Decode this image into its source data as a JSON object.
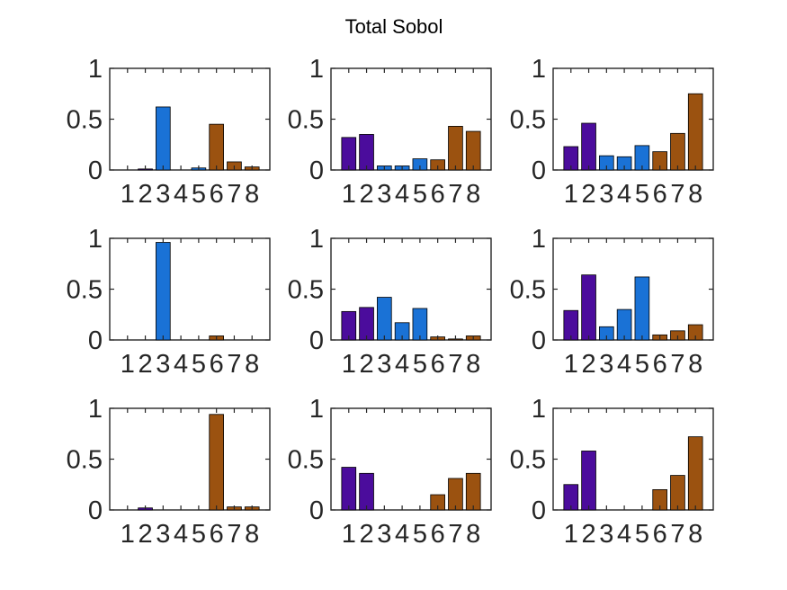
{
  "title": "Total Sobol",
  "colors": {
    "group_a": "#4B0C9C",
    "group_b": "#1A72D6",
    "group_c": "#9B5210",
    "axis": "#262626"
  },
  "chart_data": [
    {
      "type": "bar",
      "categories": [
        "1",
        "2",
        "3",
        "4",
        "5",
        "6",
        "7",
        "8"
      ],
      "values": [
        0.0,
        0.01,
        0.62,
        0.0,
        0.02,
        0.45,
        0.08,
        0.03
      ],
      "bar_colors": [
        "#4B0C9C",
        "#4B0C9C",
        "#1A72D6",
        "#1A72D6",
        "#1A72D6",
        "#9B5210",
        "#9B5210",
        "#9B5210"
      ],
      "ylim": [
        0,
        1
      ],
      "yticks": [
        0,
        0.5,
        1
      ],
      "ytick_labels": [
        "0",
        "0.5",
        "1"
      ]
    },
    {
      "type": "bar",
      "categories": [
        "1",
        "2",
        "3",
        "4",
        "5",
        "6",
        "7",
        "8"
      ],
      "values": [
        0.32,
        0.35,
        0.04,
        0.04,
        0.11,
        0.1,
        0.43,
        0.38
      ],
      "bar_colors": [
        "#4B0C9C",
        "#4B0C9C",
        "#1A72D6",
        "#1A72D6",
        "#1A72D6",
        "#9B5210",
        "#9B5210",
        "#9B5210"
      ],
      "ylim": [
        0,
        1
      ],
      "yticks": [
        0,
        0.5,
        1
      ],
      "ytick_labels": [
        "0",
        "0.5",
        "1"
      ]
    },
    {
      "type": "bar",
      "categories": [
        "1",
        "2",
        "3",
        "4",
        "5",
        "6",
        "7",
        "8"
      ],
      "values": [
        0.23,
        0.46,
        0.14,
        0.13,
        0.24,
        0.18,
        0.36,
        0.75
      ],
      "bar_colors": [
        "#4B0C9C",
        "#4B0C9C",
        "#1A72D6",
        "#1A72D6",
        "#1A72D6",
        "#9B5210",
        "#9B5210",
        "#9B5210"
      ],
      "ylim": [
        0,
        1
      ],
      "yticks": [
        0,
        0.5,
        1
      ],
      "ytick_labels": [
        "0",
        "0.5",
        "1"
      ]
    },
    {
      "type": "bar",
      "categories": [
        "1",
        "2",
        "3",
        "4",
        "5",
        "6",
        "7",
        "8"
      ],
      "values": [
        0.0,
        0.0,
        0.96,
        0.0,
        0.0,
        0.04,
        0.0,
        0.0
      ],
      "bar_colors": [
        "#4B0C9C",
        "#4B0C9C",
        "#1A72D6",
        "#1A72D6",
        "#1A72D6",
        "#9B5210",
        "#9B5210",
        "#9B5210"
      ],
      "ylim": [
        0,
        1
      ],
      "yticks": [
        0,
        0.5,
        1
      ],
      "ytick_labels": [
        "0",
        "0.5",
        "1"
      ]
    },
    {
      "type": "bar",
      "categories": [
        "1",
        "2",
        "3",
        "4",
        "5",
        "6",
        "7",
        "8"
      ],
      "values": [
        0.28,
        0.32,
        0.42,
        0.17,
        0.31,
        0.03,
        0.01,
        0.04
      ],
      "bar_colors": [
        "#4B0C9C",
        "#4B0C9C",
        "#1A72D6",
        "#1A72D6",
        "#1A72D6",
        "#9B5210",
        "#9B5210",
        "#9B5210"
      ],
      "ylim": [
        0,
        1
      ],
      "yticks": [
        0,
        0.5,
        1
      ],
      "ytick_labels": [
        "0",
        "0.5",
        "1"
      ]
    },
    {
      "type": "bar",
      "categories": [
        "1",
        "2",
        "3",
        "4",
        "5",
        "6",
        "7",
        "8"
      ],
      "values": [
        0.29,
        0.64,
        0.13,
        0.3,
        0.62,
        0.05,
        0.09,
        0.15
      ],
      "bar_colors": [
        "#4B0C9C",
        "#4B0C9C",
        "#1A72D6",
        "#1A72D6",
        "#1A72D6",
        "#9B5210",
        "#9B5210",
        "#9B5210"
      ],
      "ylim": [
        0,
        1
      ],
      "yticks": [
        0,
        0.5,
        1
      ],
      "ytick_labels": [
        "0",
        "0.5",
        "1"
      ]
    },
    {
      "type": "bar",
      "categories": [
        "1",
        "2",
        "3",
        "4",
        "5",
        "6",
        "7",
        "8"
      ],
      "values": [
        0.0,
        0.02,
        0.0,
        0.0,
        0.0,
        0.94,
        0.03,
        0.03
      ],
      "bar_colors": [
        "#4B0C9C",
        "#4B0C9C",
        "#1A72D6",
        "#1A72D6",
        "#1A72D6",
        "#9B5210",
        "#9B5210",
        "#9B5210"
      ],
      "ylim": [
        0,
        1
      ],
      "yticks": [
        0,
        0.5,
        1
      ],
      "ytick_labels": [
        "0",
        "0.5",
        "1"
      ]
    },
    {
      "type": "bar",
      "categories": [
        "1",
        "2",
        "3",
        "4",
        "5",
        "6",
        "7",
        "8"
      ],
      "values": [
        0.42,
        0.36,
        0.0,
        0.0,
        0.0,
        0.15,
        0.31,
        0.36
      ],
      "bar_colors": [
        "#4B0C9C",
        "#4B0C9C",
        "#1A72D6",
        "#1A72D6",
        "#1A72D6",
        "#9B5210",
        "#9B5210",
        "#9B5210"
      ],
      "ylim": [
        0,
        1
      ],
      "yticks": [
        0,
        0.5,
        1
      ],
      "ytick_labels": [
        "0",
        "0.5",
        "1"
      ]
    },
    {
      "type": "bar",
      "categories": [
        "1",
        "2",
        "3",
        "4",
        "5",
        "6",
        "7",
        "8"
      ],
      "values": [
        0.25,
        0.58,
        0.0,
        0.0,
        0.0,
        0.2,
        0.34,
        0.72
      ],
      "bar_colors": [
        "#4B0C9C",
        "#4B0C9C",
        "#1A72D6",
        "#1A72D6",
        "#1A72D6",
        "#9B5210",
        "#9B5210",
        "#9B5210"
      ],
      "ylim": [
        0,
        1
      ],
      "yticks": [
        0,
        0.5,
        1
      ],
      "ytick_labels": [
        "0",
        "0.5",
        "1"
      ]
    }
  ]
}
